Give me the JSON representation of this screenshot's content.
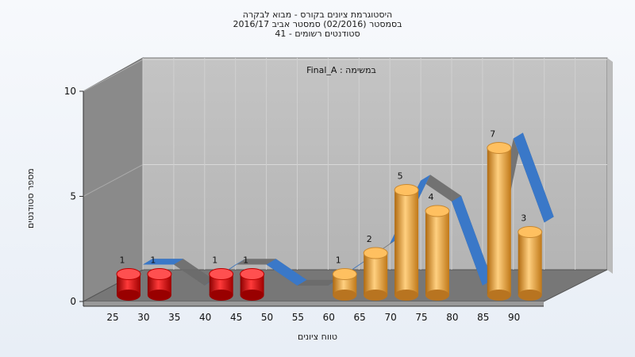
{
  "chart_data": {
    "type": "bar",
    "title_lines": [
      "היסטוגרמת ציונים בקורס - מבוא לבקרה",
      "בסמסטר  (02/2016)  סמסטר אביב 2016/17",
      "סטודנטים רשומים - 41"
    ],
    "xlabel": "טווח ציונים",
    "ylabel": "מספר סטודנטים",
    "annotation": "במשימה : Final_A",
    "x_ticks": [
      "25",
      "30",
      "35",
      "40",
      "45",
      "50",
      "55",
      "60",
      "65",
      "70",
      "75",
      "80",
      "85",
      "90"
    ],
    "y_ticks": [
      0,
      5,
      10
    ],
    "ylim": [
      0,
      10
    ],
    "grid": true,
    "bars": [
      {
        "x": "25",
        "value": 1,
        "color": "#d81818"
      },
      {
        "x": "30",
        "value": 1,
        "color": "#d81818"
      },
      {
        "x": "40",
        "value": 1,
        "color": "#d81818"
      },
      {
        "x": "45",
        "value": 1,
        "color": "#d81818"
      },
      {
        "x": "60",
        "value": 1,
        "color": "#e0a040"
      },
      {
        "x": "65",
        "value": 2,
        "color": "#e0a040"
      },
      {
        "x": "70",
        "value": 5,
        "color": "#e0a040"
      },
      {
        "x": "75",
        "value": 4,
        "color": "#e0a040"
      },
      {
        "x": "85",
        "value": 7,
        "color": "#e0a040"
      },
      {
        "x": "90",
        "value": 3,
        "color": "#e0a040"
      }
    ],
    "ribbon_color": "#3a78c8"
  }
}
